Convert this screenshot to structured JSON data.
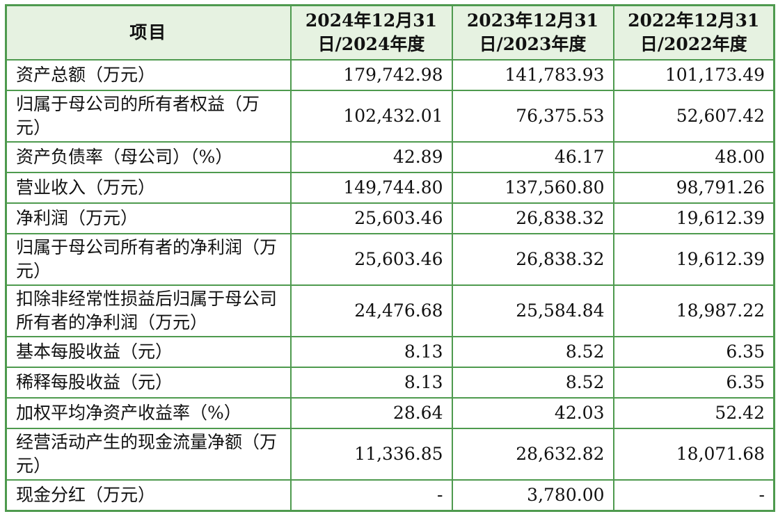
{
  "table": {
    "headers": [
      "项目",
      "2024年12月31日/2024年度",
      "2023年12月31日/2023年度",
      "2022年12月31日/2022年度"
    ],
    "rows": [
      {
        "label": "资产总额（万元）",
        "v2024": "179,742.98",
        "v2023": "141,783.93",
        "v2022": "101,173.49"
      },
      {
        "label": "归属于母公司的所有者权益（万元）",
        "v2024": "102,432.01",
        "v2023": "76,375.53",
        "v2022": "52,607.42"
      },
      {
        "label": "资产负债率（母公司）（%）",
        "v2024": "42.89",
        "v2023": "46.17",
        "v2022": "48.00"
      },
      {
        "label": "营业收入（万元）",
        "v2024": "149,744.80",
        "v2023": "137,560.80",
        "v2022": "98,791.26"
      },
      {
        "label": "净利润（万元）",
        "v2024": "25,603.46",
        "v2023": "26,838.32",
        "v2022": "19,612.39"
      },
      {
        "label": "归属于母公司所有者的净利润（万元）",
        "v2024": "25,603.46",
        "v2023": "26,838.32",
        "v2022": "19,612.39"
      },
      {
        "label": "扣除非经常性损益后归属于母公司所有者的净利润（万元）",
        "v2024": "24,476.68",
        "v2023": "25,584.84",
        "v2022": "18,987.22"
      },
      {
        "label": "基本每股收益（元）",
        "v2024": "8.13",
        "v2023": "8.52",
        "v2022": "6.35"
      },
      {
        "label": "稀释每股收益（元）",
        "v2024": "8.13",
        "v2023": "8.52",
        "v2022": "6.35"
      },
      {
        "label": "加权平均净资产收益率（%）",
        "v2024": "28.64",
        "v2023": "42.03",
        "v2022": "52.42"
      },
      {
        "label": "经营活动产生的现金流量净额（万元）",
        "v2024": "11,336.85",
        "v2023": "28,632.82",
        "v2022": "18,071.68"
      },
      {
        "label": "现金分红（万元）",
        "v2024": "-",
        "v2023": "3,780.00",
        "v2022": "-"
      }
    ]
  }
}
